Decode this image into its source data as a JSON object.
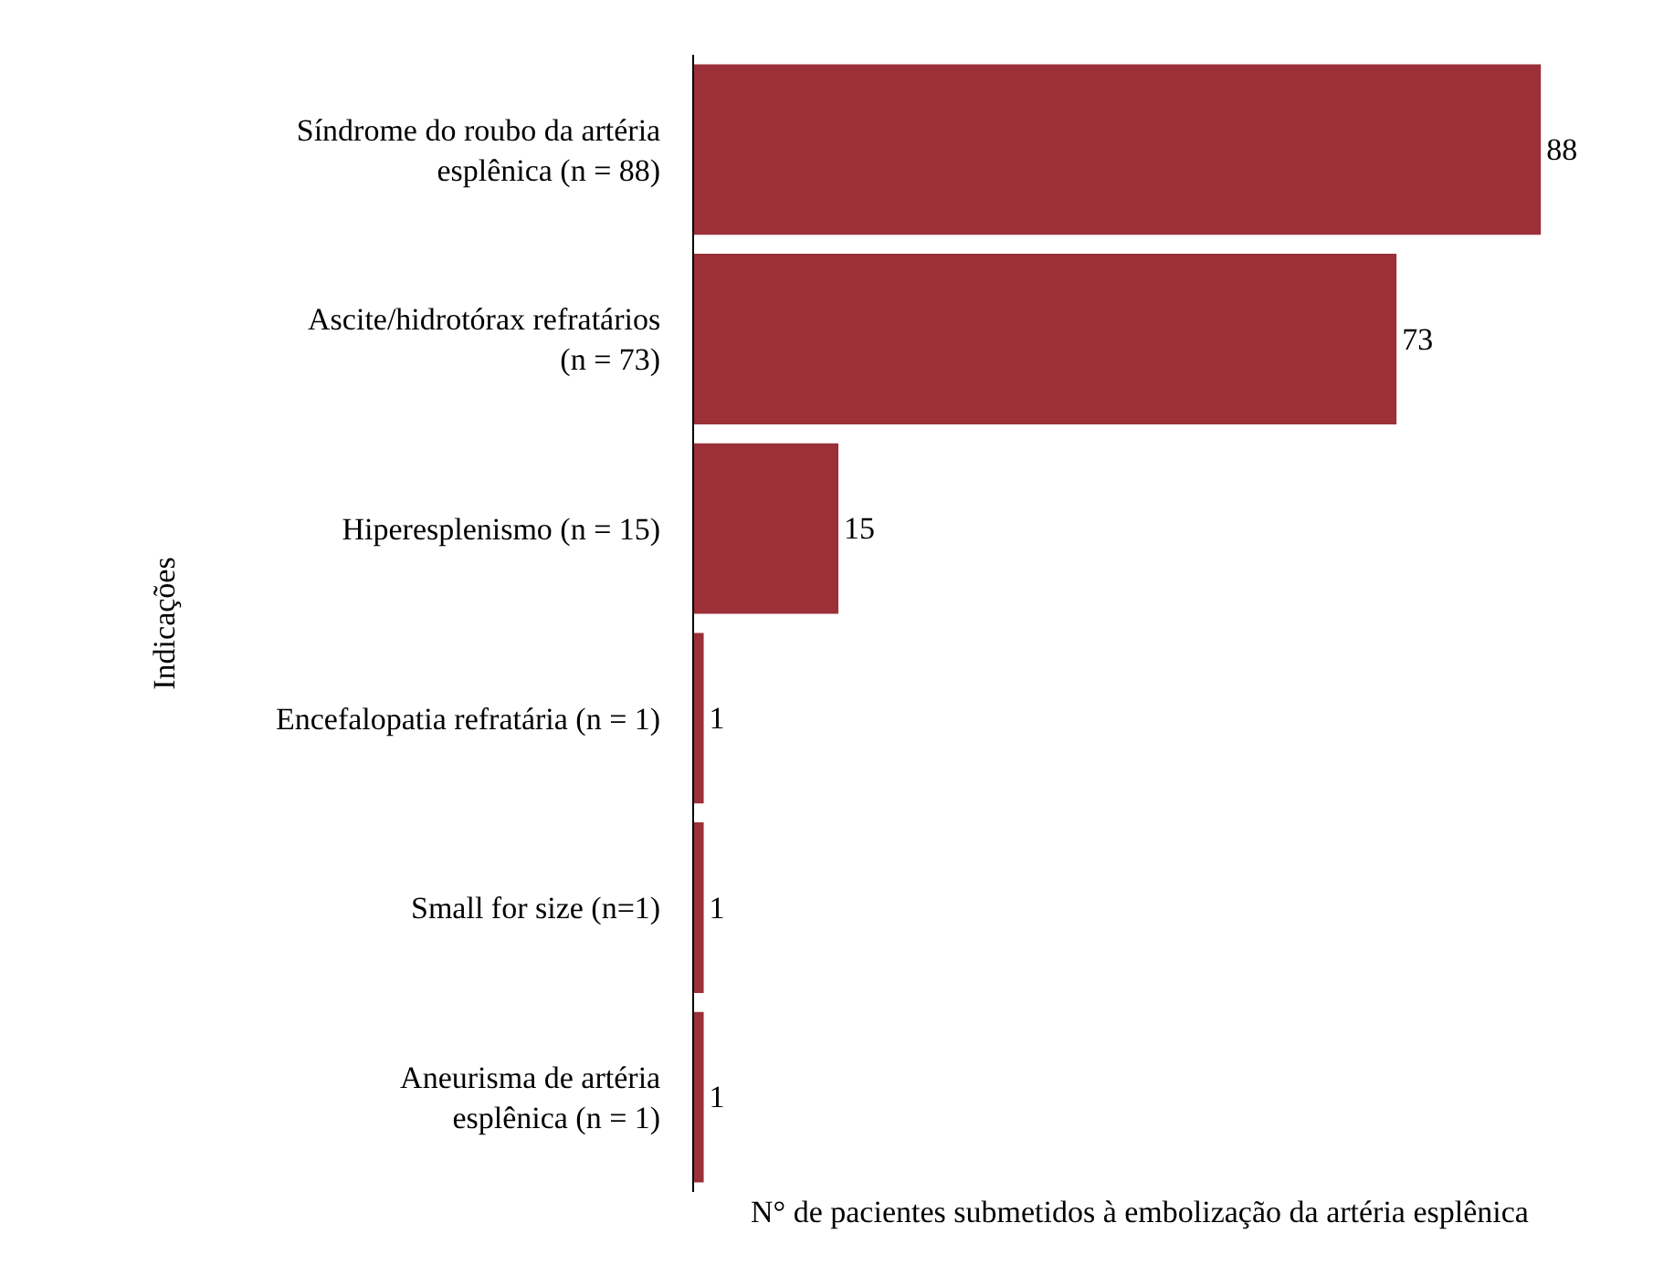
{
  "chart_data": {
    "type": "bar",
    "orientation": "horizontal",
    "xlabel": "N° de pacientes submetidos à embolização da artéria esplênica",
    "ylabel": "Indicações",
    "categories": [
      "Síndrome do roubo da artéria\nesplênica (n = 88)",
      "Ascite/hidrotórax refratários\n(n = 73)",
      "Hiperesplenismo (n = 15)",
      "Encefalopatia refratária (n = 1)",
      "Small for size (n=1)",
      "Aneurisma de artéria\nesplênica (n = 1)"
    ],
    "values": [
      88,
      73,
      15,
      1,
      1,
      1
    ],
    "color": "#9b3038",
    "data_labels": true,
    "tick_labels": "y",
    "grid": false
  }
}
